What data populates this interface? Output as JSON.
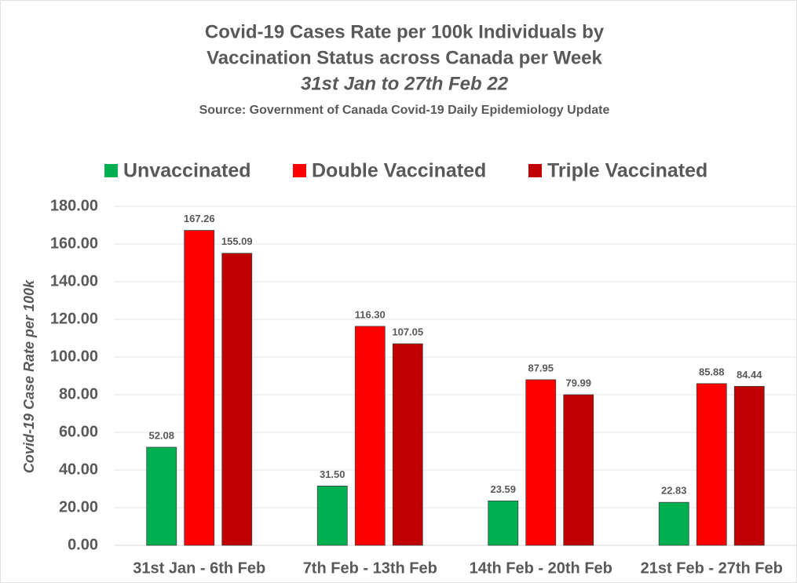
{
  "chart_data": {
    "type": "bar",
    "title": [
      "Covid-19 Cases Rate per 100k Individuals by",
      "Vaccination Status across Canada per Week"
    ],
    "subtitle": "31st Jan to 27th Feb 22",
    "source": "Source: Government of Canada  Covid-19 Daily Epidemiology Update",
    "y_label": "Covid-19 Case Rate per 100k",
    "categories": [
      "31st Jan - 6th Feb",
      "7th Feb - 13th Feb",
      "14th Feb - 20th Feb",
      "21st Feb - 27th Feb"
    ],
    "series": [
      {
        "name": "Unvaccinated",
        "color": "#00b050",
        "values": [
          52.08,
          31.5,
          23.59,
          22.83
        ],
        "value_labels": [
          "52.08",
          "31.50",
          "23.59",
          "22.83"
        ]
      },
      {
        "name": "Double Vaccinated",
        "color": "#ff0000",
        "values": [
          167.26,
          116.3,
          87.95,
          85.88
        ],
        "value_labels": [
          "167.26",
          "116.30",
          "87.95",
          "85.88"
        ]
      },
      {
        "name": "Triple Vaccinated",
        "color": "#c00000",
        "values": [
          155.09,
          107.05,
          79.99,
          84.44
        ],
        "value_labels": [
          "155.09",
          "107.05",
          "79.99",
          "84.44"
        ]
      }
    ],
    "ylim": [
      0,
      180
    ],
    "yticks": [
      {
        "value": 0,
        "label": "0.00"
      },
      {
        "value": 20,
        "label": "20.00"
      },
      {
        "value": 40,
        "label": "40.00"
      },
      {
        "value": 60,
        "label": "60.00"
      },
      {
        "value": 80,
        "label": "80.00"
      },
      {
        "value": 100,
        "label": "100.00"
      },
      {
        "value": 120,
        "label": "120.00"
      },
      {
        "value": 140,
        "label": "140.00"
      },
      {
        "value": 160,
        "label": "160.00"
      },
      {
        "value": 180,
        "label": "180.00"
      }
    ],
    "grid": true,
    "legend": "top"
  }
}
